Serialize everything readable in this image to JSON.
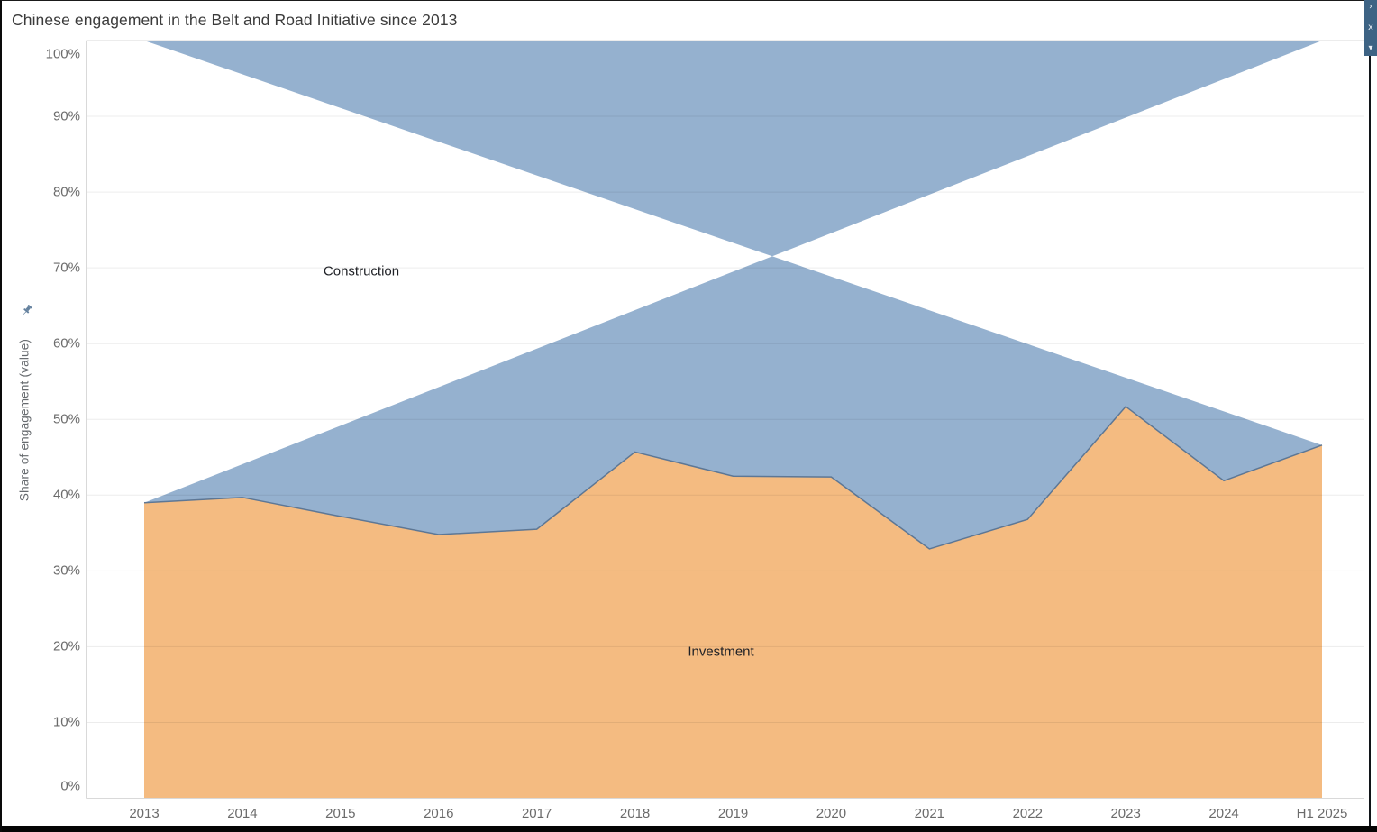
{
  "window": {
    "title": "Chinese engagement in the Belt and Road Initiative since 2013"
  },
  "chart_data": {
    "type": "area",
    "variant": "100-percent-stacked",
    "title": "Chinese engagement in the Belt and Road Initiative since 2013",
    "xlabel": "",
    "ylabel": "Share of engagement (value)",
    "ylim": [
      0,
      100
    ],
    "grid": true,
    "legend_position": "labels-inside-areas",
    "categories": [
      "2013",
      "2014",
      "2015",
      "2016",
      "2017",
      "2018",
      "2019",
      "2020",
      "2021",
      "2022",
      "2023",
      "2024",
      "H1 2025"
    ],
    "series": [
      {
        "name": "Investment",
        "stack_order": "bottom",
        "color": "#f4b87c",
        "values": [
          39.0,
          39.7,
          37.2,
          34.8,
          35.5,
          45.7,
          42.5,
          42.4,
          32.9,
          36.8,
          51.7,
          41.9,
          46.6
        ]
      },
      {
        "name": "Construction",
        "stack_order": "top",
        "color": "#91aecd",
        "values": [
          61.0,
          60.3,
          62.8,
          65.2,
          64.5,
          54.3,
          57.5,
          57.6,
          67.1,
          63.2,
          48.3,
          58.1,
          53.4
        ]
      }
    ],
    "ytick_labels": [
      "0%",
      "10%",
      "20%",
      "30%",
      "40%",
      "50%",
      "60%",
      "70%",
      "80%",
      "90%",
      "100%"
    ]
  },
  "axis": {
    "y_title": "Share of engagement (value)"
  },
  "icons": {
    "pin": "axis-pin",
    "toolbar": [
      {
        "name": "chevron-right-icon",
        "glyph": "›"
      },
      {
        "name": "close-icon",
        "glyph": "x"
      },
      {
        "name": "caret-down-icon",
        "glyph": "▾"
      }
    ]
  },
  "colors": {
    "investment_fill": "#f4b87c",
    "construction_fill": "#91aecd",
    "boundary_stroke": "#5d7795",
    "gridline": "rgba(0,0,0,0.075)",
    "axis_line": "#d9d9d9",
    "tick_text": "#6b6b6b",
    "title_text": "#3b3b3b",
    "toolbar_bg": "#3d6384",
    "pin": "#64819e"
  }
}
